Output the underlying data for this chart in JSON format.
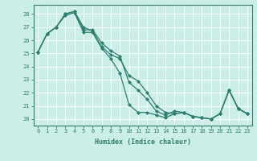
{
  "title": "",
  "xlabel": "Humidex (Indice chaleur)",
  "ylabel": "",
  "background_color": "#cceee8",
  "grid_color": "#ffffff",
  "line_color": "#2e7d6e",
  "xlim": [
    -0.5,
    23.5
  ],
  "ylim": [
    19.5,
    28.7
  ],
  "xticks": [
    0,
    1,
    2,
    3,
    4,
    5,
    6,
    7,
    8,
    9,
    10,
    11,
    12,
    13,
    14,
    15,
    16,
    17,
    18,
    19,
    20,
    21,
    22,
    23
  ],
  "yticks": [
    20,
    21,
    22,
    23,
    24,
    25,
    26,
    27,
    28
  ],
  "line1_y": [
    25.1,
    26.5,
    27.0,
    28.0,
    28.2,
    26.8,
    26.8,
    25.8,
    25.2,
    24.8,
    22.8,
    22.2,
    21.5,
    20.6,
    20.3,
    20.6,
    20.5,
    20.2,
    20.1,
    20.0,
    20.4,
    22.2,
    20.8,
    20.4
  ],
  "line2_y": [
    25.1,
    26.5,
    27.0,
    28.0,
    28.2,
    27.0,
    26.7,
    25.5,
    24.9,
    24.6,
    23.3,
    22.9,
    22.0,
    21.0,
    20.5,
    20.4,
    20.5,
    20.2,
    20.1,
    20.0,
    20.4,
    22.2,
    20.8,
    20.4
  ],
  "line3_y": [
    25.1,
    26.5,
    27.0,
    27.9,
    28.1,
    26.6,
    26.6,
    25.4,
    24.6,
    23.5,
    21.1,
    20.5,
    20.5,
    20.3,
    20.1,
    20.4,
    20.5,
    20.2,
    20.1,
    20.0,
    20.4,
    22.2,
    20.8,
    20.4
  ],
  "xlabel_fontsize": 6,
  "tick_fontsize": 5,
  "linewidth": 0.9,
  "markersize": 2.2
}
